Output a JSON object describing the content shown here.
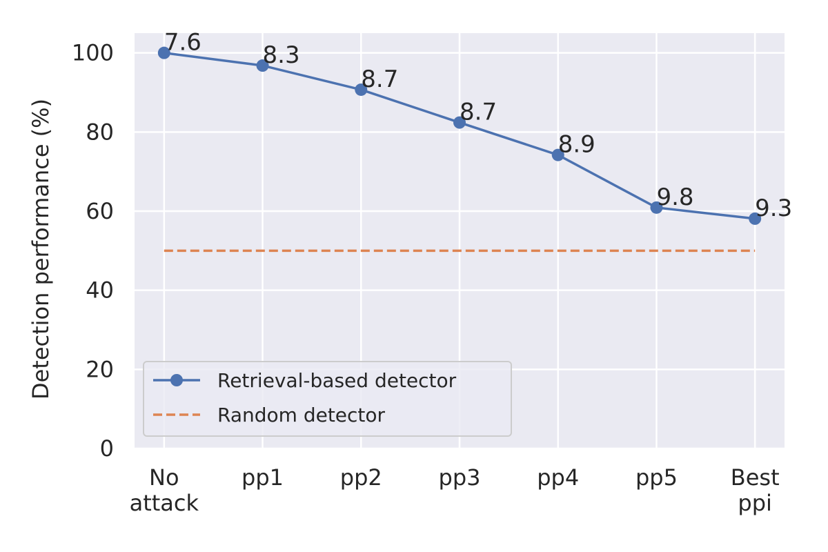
{
  "chart_data": {
    "type": "line",
    "title": "",
    "xlabel": "",
    "ylabel": "Detection performance (%)",
    "categories": [
      [
        "No",
        "attack"
      ],
      [
        "pp1"
      ],
      [
        "pp2"
      ],
      [
        "pp3"
      ],
      [
        "pp4"
      ],
      [
        "pp5"
      ],
      [
        "Best",
        "ppi"
      ]
    ],
    "xlim": [
      -0.3,
      6.3
    ],
    "ylim": [
      0,
      105
    ],
    "yticks": [
      0,
      20,
      40,
      60,
      80,
      100
    ],
    "grid": true,
    "legend_position": "lower-left",
    "series": [
      {
        "name": "Retrieval-based detector",
        "color": "#4c72b0",
        "style": "solid",
        "marker": "circle",
        "values": [
          100,
          96.8,
          90.7,
          82.4,
          74.2,
          60.9,
          58.1
        ],
        "labels": [
          "7.6",
          "8.3",
          "8.7",
          "8.7",
          "8.9",
          "9.8",
          "9.3"
        ]
      },
      {
        "name": "Random detector",
        "color": "#dd8452",
        "style": "dashed",
        "marker": "none",
        "values": [
          50,
          50,
          50,
          50,
          50,
          50,
          50
        ]
      }
    ],
    "background": "#eaeaf2"
  }
}
